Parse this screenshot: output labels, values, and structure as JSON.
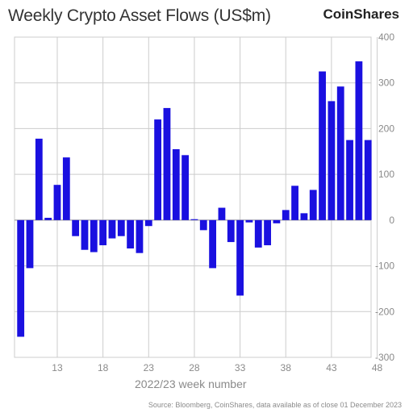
{
  "title": "Weekly Crypto Asset Flows (US$m)",
  "brand": "CoinShares",
  "source": "Source: Bloomberg, CoinShares, data available as of close 01 December 2023",
  "colors": {
    "bar": "#1a10e0",
    "grid": "#cccccc",
    "axis_text": "#8a8a8a"
  },
  "chart_data": {
    "type": "bar",
    "title": "Weekly Crypto Asset Flows (US$m)",
    "xlabel": "2022/23 week number",
    "ylabel": "",
    "ylim": [
      -300,
      400
    ],
    "yticks": [
      -300,
      -200,
      -100,
      0,
      100,
      200,
      300,
      400
    ],
    "y_axis_side": "right",
    "grid": true,
    "xtick_labels": [
      "13",
      "18",
      "23",
      "28",
      "33",
      "38",
      "43",
      "48"
    ],
    "categories": [
      "9",
      "10",
      "11",
      "12",
      "13",
      "14",
      "15",
      "16",
      "17",
      "18",
      "19",
      "20",
      "21",
      "22",
      "23",
      "24",
      "25",
      "26",
      "27",
      "28",
      "29",
      "30",
      "31",
      "32",
      "33",
      "34",
      "35",
      "36",
      "37",
      "38",
      "39",
      "40",
      "41",
      "42",
      "43",
      "44",
      "45",
      "46",
      "47",
      "48"
    ],
    "values": [
      -255,
      -105,
      178,
      5,
      77,
      137,
      -35,
      -65,
      -70,
      -55,
      -40,
      -35,
      -62,
      -72,
      -13,
      220,
      245,
      155,
      142,
      2,
      -22,
      -105,
      27,
      -48,
      -165,
      -5,
      -60,
      -55,
      -7,
      22,
      75,
      15,
      66,
      325,
      260,
      292,
      175,
      347,
      175,
      0
    ]
  }
}
